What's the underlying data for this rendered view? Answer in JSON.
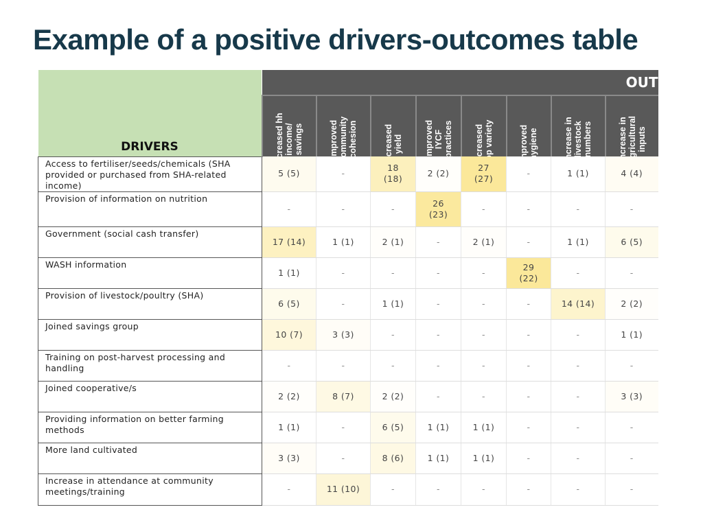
{
  "title": "Example of a positive drivers-outcomes table",
  "colors": {
    "title": "#17394a",
    "drivers_header": "#c6e0b4",
    "outcomes_header": "#595959",
    "highlight": "#fbe89a"
  },
  "table": {
    "drivers_header": "DRIVERS",
    "outcomes_header": "OUT",
    "outcomes": [
      "Increased hh income/ savings",
      "Improved community cohesion",
      "Increased yield",
      "Improved IYCF practices",
      "Increased crop variety",
      "Improved hygiene",
      "Increase in livestock numbers",
      "Increase in agricultural inputs"
    ],
    "rows": [
      {
        "driver": "Access to fertiliser/seeds/chemicals (SHA provided or purchased from SHA-related income)",
        "values": [
          "5 (5)",
          "-",
          "18 (18)",
          "2  (2)",
          "27 (27)",
          "-",
          "1 (1)",
          "4 (4)"
        ]
      },
      {
        "driver": "Provision of information on nutrition",
        "values": [
          "-",
          "-",
          "-",
          "26 (23)",
          "-",
          "-",
          "-",
          "-"
        ]
      },
      {
        "driver": "Government (social cash transfer)",
        "values": [
          "17 (14)",
          "1 (1)",
          "2 (1)",
          "-",
          "2 (1)",
          "-",
          "1 (1)",
          "6 (5)"
        ]
      },
      {
        "driver": "WASH information",
        "values": [
          "1 (1)",
          "-",
          "-",
          "-",
          "-",
          "29 (22)",
          "-",
          "-"
        ]
      },
      {
        "driver": "Provision of livestock/poultry (SHA)",
        "values": [
          "6 (5)",
          "-",
          "1 (1)",
          "-",
          "-",
          "-",
          "14 (14)",
          "2 (2)"
        ]
      },
      {
        "driver": "Joined savings group",
        "values": [
          "10 (7)",
          "3 (3)",
          "-",
          "-",
          "-",
          "-",
          "-",
          "1 (1)"
        ]
      },
      {
        "driver": "Training on post-harvest processing and handling",
        "values": [
          "-",
          "-",
          "-",
          "-",
          "-",
          "-",
          "-",
          "-"
        ]
      },
      {
        "driver": "Joined cooperative/s",
        "values": [
          "2 (2)",
          "8 (7)",
          "2 (2)",
          "-",
          "-",
          "-",
          "-",
          "3 (3)"
        ]
      },
      {
        "driver": "Providing information on better farming methods",
        "values": [
          "1 (1)",
          "-",
          "6 (5)",
          "1 (1)",
          "1 (1)",
          "-",
          "-",
          "-"
        ]
      },
      {
        "driver": "More land cultivated",
        "values": [
          "3 (3)",
          "-",
          "8 (6)",
          "1 (1)",
          "1 (1)",
          "-",
          "-",
          "-"
        ]
      },
      {
        "driver": "Increase in attendance at community meetings/training",
        "values": [
          "-",
          "11 (10)",
          "-",
          "-",
          "-",
          "-",
          "-",
          "-"
        ]
      }
    ]
  }
}
